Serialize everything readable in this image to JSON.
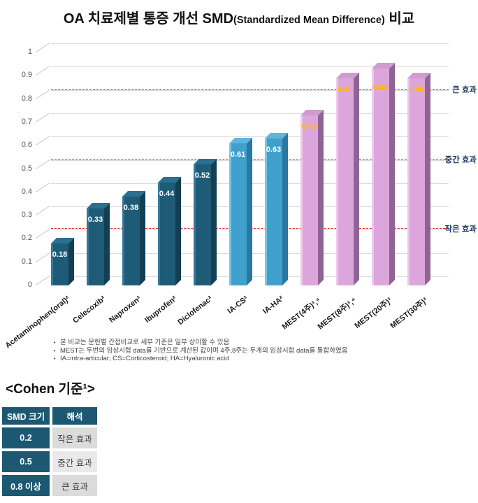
{
  "title": {
    "prefix": "OA 치료제별 통증 개선 SMD",
    "paren": "(Standardized Mean Difference)",
    "suffix": " 비교"
  },
  "chart_data": {
    "type": "bar",
    "title": "OA 치료제별 통증 개선 SMD(Standardized Mean Difference) 비교",
    "xlabel": "",
    "ylabel": "",
    "ylim": [
      0,
      1
    ],
    "grid": true,
    "categories": [
      "Acetaminophen(oral)²",
      "Celecoxib²",
      "Naproxen²",
      "Ibuprofen²",
      "Diclofenac²",
      "IA-CS²",
      "IA-HA²",
      "MEST(4주)³,⁴",
      "MEST(8주)³,⁴",
      "MEST(20주)³",
      "MEST(30주)³"
    ],
    "values": [
      0.18,
      0.33,
      0.38,
      0.44,
      0.52,
      0.61,
      0.63,
      0.73,
      0.89,
      0.93,
      0.89
    ],
    "groups": [
      "dark",
      "dark",
      "dark",
      "dark",
      "dark",
      "blue",
      "blue",
      "pink",
      "pink",
      "pink",
      "pink"
    ],
    "palette": {
      "dark": {
        "front": "#1E5B76",
        "side": "#133F54",
        "top": "#2A7090",
        "highlight": "#35789A",
        "label": "#FFFFFF"
      },
      "blue": {
        "front": "#3FA0CE",
        "side": "#2878A2",
        "top": "#5FB5DB",
        "highlight": "#7CC4E4",
        "label": "#FFFFFF"
      },
      "pink": {
        "front": "#DCA6DC",
        "side": "#8F6494",
        "top": "#CE9CCF",
        "highlight": "#ECC8EC",
        "label": "#FFB900"
      }
    },
    "yticks": [
      0,
      0.1,
      0.2,
      0.3,
      0.4,
      0.5,
      0.6,
      0.7,
      0.8,
      0.9,
      1
    ],
    "ytick_labels": [
      "0",
      "0.1",
      "0.2",
      "0.3",
      "0.4",
      "0.5",
      "0.6",
      "0.7",
      "0.8",
      "0.9",
      "1"
    ],
    "gridline_color": "#D9D9D9",
    "reference_lines": [
      {
        "value": 0.8,
        "label": "큰 효과",
        "color": "#E02525"
      },
      {
        "value": 0.5,
        "label": "중간 효과",
        "color": "#E02525"
      },
      {
        "value": 0.2,
        "label": "작은 효과",
        "color": "#E02525"
      }
    ],
    "reference_label_color": "#1F3864",
    "legend": null
  },
  "footnotes": {
    "items": [
      "본 비교는 문헌별 간접비교로 세부 기준은 일부 상이할 수 있음",
      "MEST는 두번의 임상시험 data를 기반으로 계산된 값이며 4주,8주는 두개의 임상시험 data를 통합하였음",
      "IA=intra-articular; CS=Corticosteroid; HA=Hyaluronic acid"
    ]
  },
  "cohen": {
    "heading": "<Cohen 기준¹>",
    "columns": [
      "SMD 크기",
      "해석"
    ],
    "rows": [
      [
        "0.2",
        "작은 효과"
      ],
      [
        "0.5",
        "중간 효과"
      ],
      [
        "0.8 이상",
        "큰 효과"
      ]
    ],
    "header_bg": "#1C5871",
    "row_alt_bgs": [
      "#DBDBDB",
      "#EAE9E9"
    ]
  }
}
